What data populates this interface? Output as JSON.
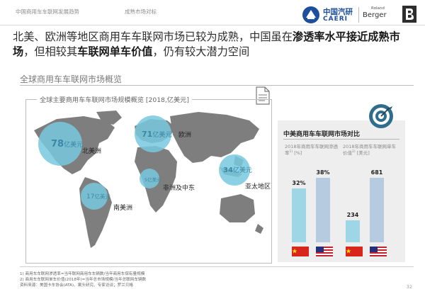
{
  "header": {
    "breadcrumb": "中国商用车车联网发展趋势",
    "section": "成熟市场对标",
    "caeri_cn": "中国汽研",
    "caeri_en": "CAERI",
    "rb_small": "Roland",
    "rb_big": "Berger"
  },
  "headline": {
    "p1": "北美、欧洲等地区商用车车联网市场已较为成熟，中国虽在",
    "b1": "渗透率水平接近成熟市场",
    "p2": "，但相较其",
    "b2": "车联网单车价值",
    "p3": "，仍有较大潜力空间"
  },
  "section_title": "全球商用车车联网市场概览",
  "map": {
    "title": "全球主要商用车车联网市场规模概览 [2018,亿美元]",
    "markets": [
      {
        "value": "78",
        "unit": "亿美元",
        "region": "北美洲"
      },
      {
        "value": "71",
        "unit": "亿美元",
        "region": "欧洲"
      },
      {
        "value": "5",
        "unit": "亿美元",
        "region": "非洲及中东"
      },
      {
        "value": "34",
        "unit": "亿美元",
        "region": "亚太地区"
      },
      {
        "value": "17",
        "unit": "亿美元",
        "region": "南美洲"
      }
    ]
  },
  "comparison": {
    "title": "中美商用车车联网市场对比",
    "left_label": "2018年商用车车联网渗透率",
    "left_sup": "1)",
    "left_unit": "[%]",
    "right_label": "2018年商用车车联网单车价值",
    "right_sup": "2)",
    "right_unit": "[美元]",
    "chart_data": [
      {
        "type": "bar",
        "categories": [
          "中国",
          "美国"
        ],
        "values": [
          32,
          38
        ],
        "value_labels": [
          "32%",
          "38%"
        ]
      },
      {
        "type": "bar",
        "categories": [
          "中国",
          "美国"
        ],
        "values": [
          234,
          681
        ],
        "value_labels": [
          "234",
          "681"
        ]
      }
    ],
    "colors": {
      "china": "#9fd6e6",
      "usa": "#b7cbe0"
    }
  },
  "footnotes": {
    "f1": "1) 商用车车联网渗透率=当年联网商用车车辆数/当年商用车保有量规模",
    "f2": "2) 商用车车联网单车价值(2018年)=当年总市场规模/当年总联网车辆数",
    "src": "资料来源：美国卡车协会(ATA)、案头研究、专家访谈；罗兰贝格"
  },
  "page_number": "32"
}
